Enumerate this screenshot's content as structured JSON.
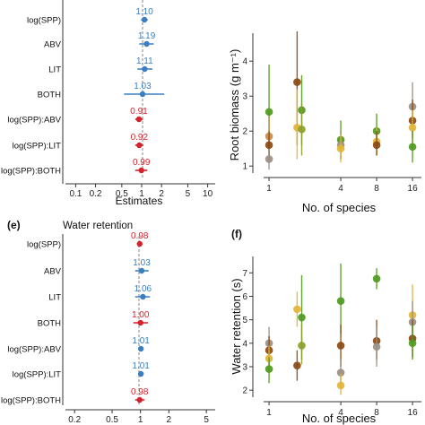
{
  "colors": {
    "blue": "#3a7fc1",
    "red": "#d6212b",
    "green": "#4f9a1f",
    "brown": "#8a4a12",
    "gold": "#e2b43a",
    "tan": "#c98a4a",
    "grey": "#9a8f85",
    "olive": "#8aa12a"
  },
  "chart_data": [
    {
      "panel": "",
      "type": "scatter",
      "title": "",
      "xlabel": "Estimates",
      "xscale": "log",
      "xlim": [
        0.07,
        13
      ],
      "xticks": [
        "0.1",
        "0.2",
        "0.5",
        "1",
        "2",
        "5",
        "10"
      ],
      "xtick_values": [
        0.1,
        0.2,
        0.5,
        1,
        2,
        5,
        10
      ],
      "terms": [
        {
          "label": "log(SPP)",
          "estimate": 1.1,
          "value_label": "1.10",
          "ci": [
            0.98,
            1.24
          ],
          "color": "blue"
        },
        {
          "label": "ABV",
          "estimate": 1.19,
          "value_label": "1.19",
          "ci": [
            0.92,
            1.52
          ],
          "color": "blue"
        },
        {
          "label": "LIT",
          "estimate": 1.11,
          "value_label": "1.11",
          "ci": [
            0.86,
            1.45
          ],
          "color": "blue"
        },
        {
          "label": "BOTH",
          "estimate": 1.03,
          "value_label": "1.03",
          "ci": [
            0.54,
            2.2
          ],
          "color": "blue"
        },
        {
          "label": "log(SPP):ABV",
          "estimate": 0.91,
          "value_label": "0.91",
          "ci": [
            0.8,
            1.04
          ],
          "color": "red"
        },
        {
          "label": "log(SPP):LIT",
          "estimate": 0.92,
          "value_label": "0.92",
          "ci": [
            0.8,
            1.06
          ],
          "color": "red"
        },
        {
          "label": "log(SPP):BOTH",
          "estimate": 0.99,
          "value_label": "0.99",
          "ci": [
            0.8,
            1.22
          ],
          "color": "red"
        }
      ]
    },
    {
      "panel": "",
      "type": "scatter",
      "title": "",
      "xlabel": "No. of species",
      "ylabel": "Root biomass (g m⁻¹)",
      "xscale": "log",
      "xlim": [
        0.9,
        19
      ],
      "ylim": [
        0.8,
        4.8
      ],
      "xticks": [
        "1",
        "4",
        "8",
        "16"
      ],
      "xtick_values": [
        1,
        4,
        8,
        16
      ],
      "yticks": [
        1,
        2,
        3,
        4
      ],
      "points": [
        {
          "x": 1.0,
          "y": 2.55,
          "lo": 1.2,
          "hi": 3.9,
          "color": "green"
        },
        {
          "x": 1.0,
          "y": 1.85,
          "lo": 1.3,
          "hi": 2.4,
          "color": "tan"
        },
        {
          "x": 1.0,
          "y": 1.6,
          "lo": 1.2,
          "hi": 2.0,
          "color": "brown"
        },
        {
          "x": 1.0,
          "y": 1.2,
          "lo": 0.9,
          "hi": 1.5,
          "color": "grey"
        },
        {
          "x": 1.72,
          "y": 3.4,
          "lo": 1.6,
          "hi": 4.85,
          "color": "brown"
        },
        {
          "x": 1.72,
          "y": 2.1,
          "lo": 1.2,
          "hi": 3.2,
          "color": "gold"
        },
        {
          "x": 1.88,
          "y": 2.6,
          "lo": 1.6,
          "hi": 3.6,
          "color": "green"
        },
        {
          "x": 1.88,
          "y": 2.05,
          "lo": 1.3,
          "hi": 2.8,
          "color": "olive"
        },
        {
          "x": 4.0,
          "y": 1.75,
          "lo": 1.2,
          "hi": 2.3,
          "color": "green"
        },
        {
          "x": 4.0,
          "y": 1.6,
          "lo": 1.2,
          "hi": 2.0,
          "color": "grey"
        },
        {
          "x": 4.0,
          "y": 1.5,
          "lo": 1.1,
          "hi": 1.9,
          "color": "gold"
        },
        {
          "x": 8.0,
          "y": 2.0,
          "lo": 1.5,
          "hi": 2.5,
          "color": "green"
        },
        {
          "x": 8.0,
          "y": 1.7,
          "lo": 1.3,
          "hi": 2.1,
          "color": "gold"
        },
        {
          "x": 8.0,
          "y": 1.6,
          "lo": 1.3,
          "hi": 2.0,
          "color": "brown"
        },
        {
          "x": 16.0,
          "y": 2.7,
          "lo": 1.9,
          "hi": 3.4,
          "color": "grey"
        },
        {
          "x": 16.0,
          "y": 2.3,
          "lo": 1.8,
          "hi": 2.9,
          "color": "brown"
        },
        {
          "x": 16.0,
          "y": 2.1,
          "lo": 1.6,
          "hi": 2.6,
          "color": "gold"
        },
        {
          "x": 16.0,
          "y": 1.55,
          "lo": 1.1,
          "hi": 2.0,
          "color": "green"
        }
      ]
    },
    {
      "panel": "(e)",
      "type": "scatter",
      "title": "Water retention",
      "xlabel": "",
      "xscale": "log",
      "xlim": [
        0.16,
        6.2
      ],
      "xticks": [
        "0.2",
        "0.5",
        "1",
        "2",
        "5"
      ],
      "xtick_values": [
        0.2,
        0.5,
        1,
        2,
        5
      ],
      "terms": [
        {
          "label": "log(SPP)",
          "estimate": 0.98,
          "value_label": "0.98",
          "ci": [
            0.92,
            1.04
          ],
          "color": "red"
        },
        {
          "label": "ABV",
          "estimate": 1.03,
          "value_label": "1.03",
          "ci": [
            0.88,
            1.22
          ],
          "color": "blue"
        },
        {
          "label": "LIT",
          "estimate": 1.06,
          "value_label": "1.06",
          "ci": [
            0.88,
            1.26
          ],
          "color": "blue"
        },
        {
          "label": "BOTH",
          "estimate": 1.0,
          "value_label": "1.00",
          "ci": [
            0.84,
            1.2
          ],
          "color": "red"
        },
        {
          "label": "log(SPP):ABV",
          "estimate": 1.01,
          "value_label": "1.01",
          "ci": [
            0.96,
            1.06
          ],
          "color": "blue"
        },
        {
          "label": "log(SPP):LIT",
          "estimate": 1.01,
          "value_label": "1.01",
          "ci": [
            0.96,
            1.06
          ],
          "color": "blue"
        },
        {
          "label": "log(SPP):BOTH",
          "estimate": 0.98,
          "value_label": "0.98",
          "ci": [
            0.88,
            1.1
          ],
          "color": "red"
        }
      ]
    },
    {
      "panel": "(f)",
      "type": "scatter",
      "title": "",
      "xlabel": "No. of species",
      "ylabel": "Water retention (s)",
      "xscale": "log",
      "xlim": [
        0.9,
        19
      ],
      "ylim": [
        1.7,
        7.7
      ],
      "xticks": [
        "1",
        "4",
        "8",
        "16"
      ],
      "xtick_values": [
        1,
        4,
        8,
        16
      ],
      "yticks": [
        2,
        3,
        4,
        5,
        6,
        7
      ],
      "points": [
        {
          "x": 1.0,
          "y": 4.0,
          "lo": 3.3,
          "hi": 4.7,
          "color": "grey"
        },
        {
          "x": 1.0,
          "y": 3.7,
          "lo": 3.0,
          "hi": 4.3,
          "color": "brown"
        },
        {
          "x": 1.0,
          "y": 3.35,
          "lo": 2.8,
          "hi": 3.9,
          "color": "gold"
        },
        {
          "x": 1.0,
          "y": 2.9,
          "lo": 2.3,
          "hi": 3.4,
          "color": "green"
        },
        {
          "x": 1.72,
          "y": 5.45,
          "lo": 4.7,
          "hi": 6.2,
          "color": "gold"
        },
        {
          "x": 1.72,
          "y": 3.05,
          "lo": 2.4,
          "hi": 3.7,
          "color": "brown"
        },
        {
          "x": 1.88,
          "y": 5.1,
          "lo": 3.3,
          "hi": 6.9,
          "color": "green"
        },
        {
          "x": 1.88,
          "y": 3.9,
          "lo": 3.1,
          "hi": 4.8,
          "color": "olive"
        },
        {
          "x": 4.0,
          "y": 5.8,
          "lo": 4.4,
          "hi": 7.4,
          "color": "green"
        },
        {
          "x": 4.0,
          "y": 3.9,
          "lo": 3.0,
          "hi": 4.8,
          "color": "brown"
        },
        {
          "x": 4.0,
          "y": 2.75,
          "lo": 2.2,
          "hi": 3.3,
          "color": "grey"
        },
        {
          "x": 4.0,
          "y": 2.2,
          "lo": 1.8,
          "hi": 2.7,
          "color": "gold"
        },
        {
          "x": 8.0,
          "y": 6.75,
          "lo": 6.3,
          "hi": 7.2,
          "color": "green"
        },
        {
          "x": 8.0,
          "y": 4.1,
          "lo": 3.3,
          "hi": 5.0,
          "color": "brown"
        },
        {
          "x": 8.0,
          "y": 3.85,
          "lo": 3.0,
          "hi": 4.7,
          "color": "grey"
        },
        {
          "x": 16.0,
          "y": 5.2,
          "lo": 4.4,
          "hi": 6.5,
          "color": "gold"
        },
        {
          "x": 16.0,
          "y": 4.9,
          "lo": 4.0,
          "hi": 5.8,
          "color": "grey"
        },
        {
          "x": 16.0,
          "y": 4.2,
          "lo": 3.4,
          "hi": 5.0,
          "color": "brown"
        },
        {
          "x": 16.0,
          "y": 4.0,
          "lo": 3.3,
          "hi": 4.8,
          "color": "green"
        }
      ]
    }
  ]
}
